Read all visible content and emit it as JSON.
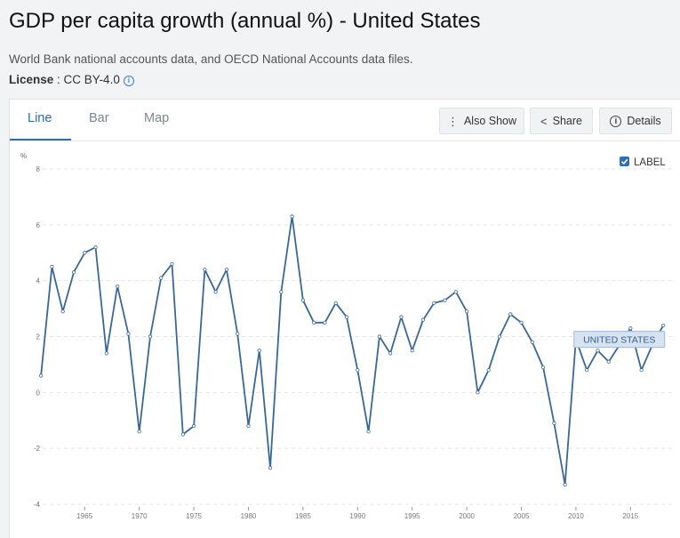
{
  "header": {
    "title": "GDP per capita growth (annual %) - United States",
    "source": "World Bank national accounts data, and OECD National Accounts data files.",
    "license_label": "License",
    "license_sep": " : ",
    "license_value": "CC BY-4.0"
  },
  "tabs": [
    {
      "label": "Line",
      "active": true
    },
    {
      "label": "Bar",
      "active": false
    },
    {
      "label": "Map",
      "active": false
    }
  ],
  "toolbar": {
    "also_show": "Also Show",
    "share": "Share",
    "details": "Details"
  },
  "colors": {
    "accent": "#2f6db5",
    "line": "#3a6896",
    "label_bg": "#d7e3f0",
    "label_border": "#9fb9d6"
  },
  "chart_data": {
    "type": "line",
    "ylabel": "%",
    "ylim": [
      -4,
      8
    ],
    "yticks": [
      -4,
      -2,
      0,
      2,
      4,
      6,
      8
    ],
    "xlim": [
      1960.5,
      2018.8
    ],
    "xticks": [
      1965,
      1970,
      1975,
      1980,
      1985,
      1990,
      1995,
      2000,
      2005,
      2010,
      2015
    ],
    "grid": true,
    "legend": {
      "label": "LABEL",
      "checked": true,
      "placement": "top-right"
    },
    "series": [
      {
        "name": "UNITED STATES",
        "x": [
          1961,
          1962,
          1963,
          1964,
          1965,
          1966,
          1967,
          1968,
          1969,
          1970,
          1971,
          1972,
          1973,
          1974,
          1975,
          1976,
          1977,
          1978,
          1979,
          1980,
          1981,
          1982,
          1983,
          1984,
          1985,
          1986,
          1987,
          1988,
          1989,
          1990,
          1991,
          1992,
          1993,
          1994,
          1995,
          1996,
          1997,
          1998,
          1999,
          2000,
          2001,
          2002,
          2003,
          2004,
          2005,
          2006,
          2007,
          2008,
          2009,
          2010,
          2011,
          2012,
          2013,
          2014,
          2015,
          2016,
          2017,
          2018
        ],
        "values": [
          0.6,
          4.5,
          2.9,
          4.3,
          5.0,
          5.2,
          1.4,
          3.8,
          2.1,
          -1.4,
          2.0,
          4.1,
          4.6,
          -1.5,
          -1.2,
          4.4,
          3.6,
          4.4,
          2.1,
          -1.2,
          1.5,
          -2.7,
          3.6,
          6.3,
          3.3,
          2.5,
          2.5,
          3.2,
          2.7,
          0.8,
          -1.4,
          2.0,
          1.4,
          2.7,
          1.5,
          2.6,
          3.2,
          3.3,
          3.6,
          2.9,
          0.0,
          0.8,
          2.0,
          2.8,
          2.5,
          1.8,
          0.9,
          -1.1,
          -3.3,
          1.9,
          0.8,
          1.5,
          1.1,
          1.7,
          2.3,
          0.8,
          1.7,
          2.4
        ]
      }
    ]
  }
}
